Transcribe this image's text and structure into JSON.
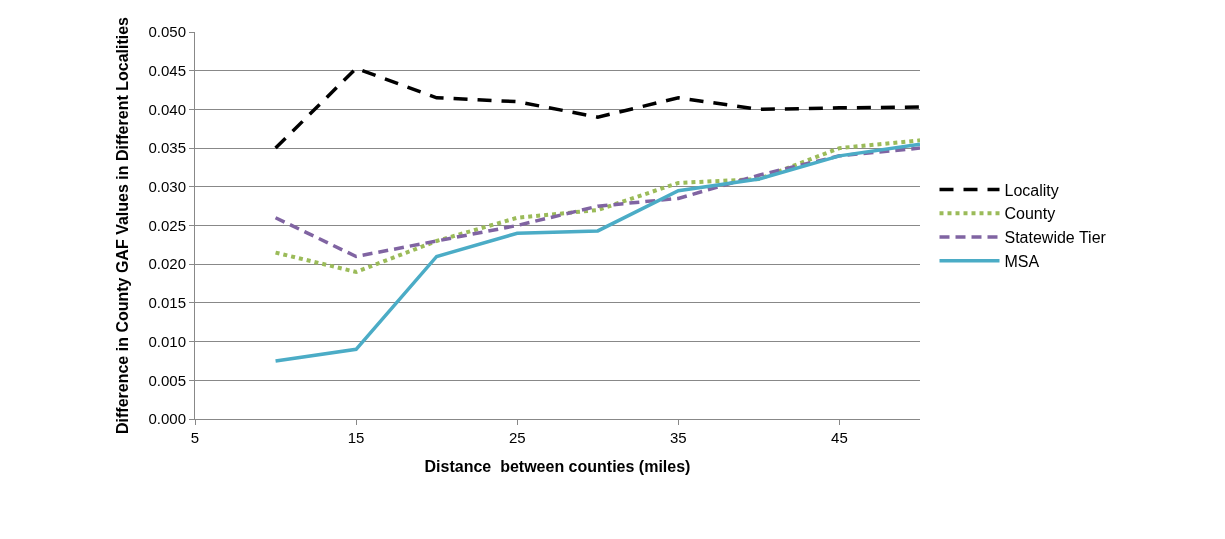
{
  "chart_data": {
    "type": "line",
    "xlabel": "Distance  between counties (miles)",
    "ylabel": "Difference in County GAF Values in Different Localities",
    "x": [
      10,
      15,
      20,
      25,
      30,
      35,
      40,
      45,
      50
    ],
    "xlim": [
      5,
      50
    ],
    "xticks": [
      5,
      15,
      25,
      35,
      45
    ],
    "ylim": [
      0,
      0.05
    ],
    "yticks": [
      {
        "value": 0,
        "label": "0.000"
      },
      {
        "value": 0.005,
        "label": "0.005"
      },
      {
        "value": 0.01,
        "label": "0.010"
      },
      {
        "value": 0.015,
        "label": "0.015"
      },
      {
        "value": 0.02,
        "label": "0.020"
      },
      {
        "value": 0.025,
        "label": "0.025"
      },
      {
        "value": 0.03,
        "label": "0.030"
      },
      {
        "value": 0.035,
        "label": "0.035"
      },
      {
        "value": 0.04,
        "label": "0.040"
      },
      {
        "value": 0.045,
        "label": "0.045"
      },
      {
        "value": 0.05,
        "label": "0.050"
      }
    ],
    "grid": "y",
    "legend": "right",
    "series": [
      {
        "name": "Locality",
        "color": "#000000",
        "line_style": "dashed",
        "values": [
          0.035,
          0.0453,
          0.0415,
          0.041,
          0.039,
          0.0415,
          0.04,
          0.0402,
          0.0403
        ]
      },
      {
        "name": "County",
        "color": "#9bbb59",
        "line_style": "dotted",
        "values": [
          0.0215,
          0.019,
          0.023,
          0.026,
          0.027,
          0.0305,
          0.031,
          0.035,
          0.036
        ]
      },
      {
        "name": "Statewide Tier",
        "color": "#8064a2",
        "line_style": "dashed",
        "values": [
          0.026,
          0.021,
          0.023,
          0.025,
          0.0275,
          0.0285,
          0.0315,
          0.034,
          0.035
        ]
      },
      {
        "name": "MSA",
        "color": "#4bacc6",
        "line_style": "solid",
        "values": [
          0.0075,
          0.009,
          0.021,
          0.024,
          0.0243,
          0.0295,
          0.031,
          0.034,
          0.0355
        ]
      }
    ]
  }
}
